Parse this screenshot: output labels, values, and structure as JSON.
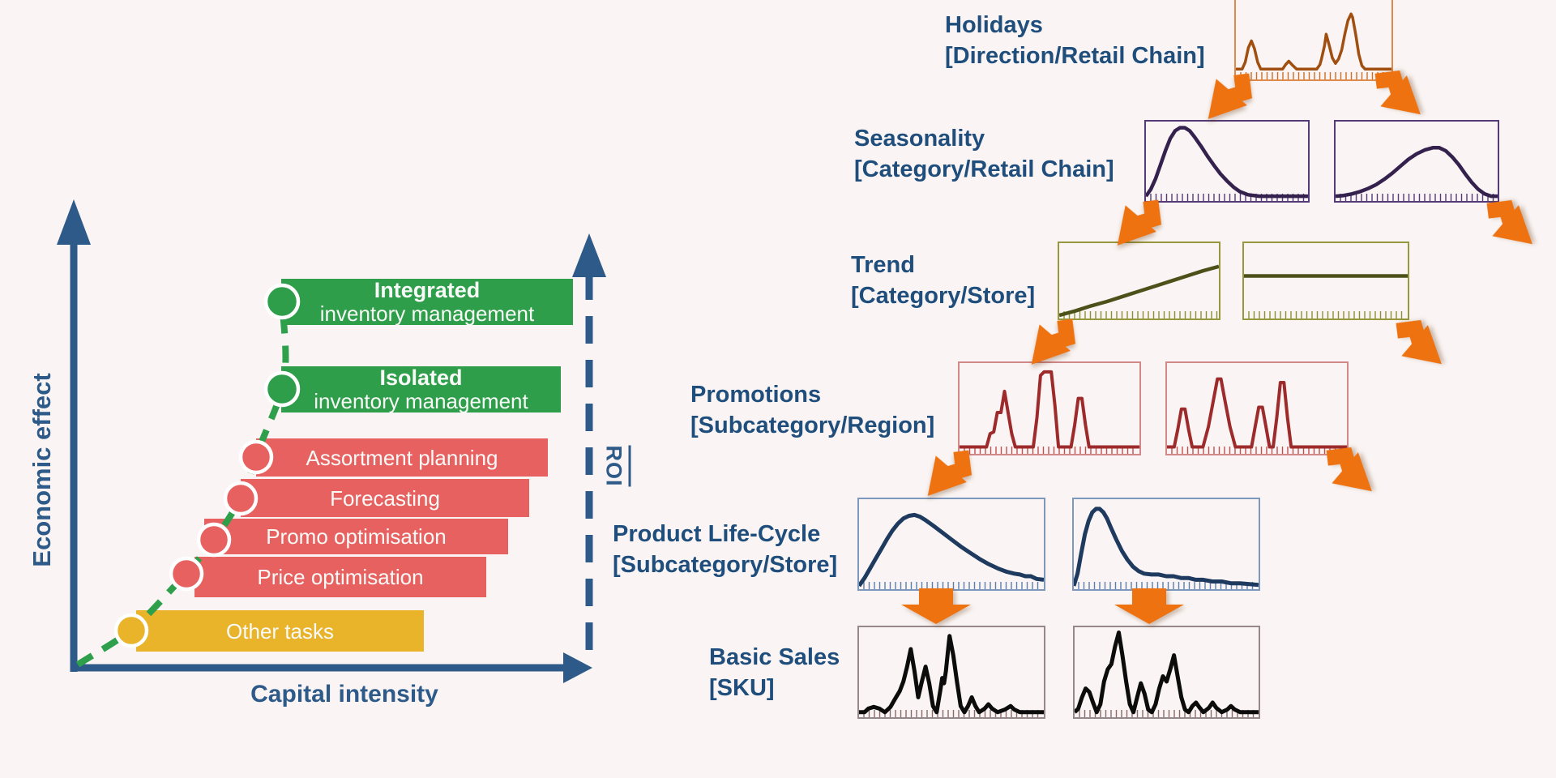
{
  "colors": {
    "background": "#faf5f4",
    "axis_blue": "#2d5a88",
    "label_blue": "#1f4e7c",
    "curve_green": "#2ea04c",
    "bar_green": "#2f9e4a",
    "bar_red": "#e86161",
    "bar_yellow": "#e9b32a",
    "arrow_orange": "#ee7210",
    "bar_text": "#f7faf7"
  },
  "left_chart": {
    "y_axis_label": "Economic effect",
    "x_axis_label": "Capital intensity",
    "roi_label": "ROI",
    "bars": [
      {
        "title": "Integrated",
        "subtitle": "inventory management",
        "color": "#2f9e4a"
      },
      {
        "title": "Isolated",
        "subtitle": "inventory management",
        "color": "#2f9e4a"
      },
      {
        "title": "Assortment planning",
        "color": "#e86161"
      },
      {
        "title": "Forecasting",
        "color": "#e86161"
      },
      {
        "title": "Promo optimisation",
        "color": "#e86161"
      },
      {
        "title": "Price optimisation",
        "color": "#e86161"
      },
      {
        "title": "Other tasks",
        "color": "#e9b32a"
      }
    ]
  },
  "hierarchy": {
    "rows": [
      {
        "title": "Holidays",
        "scope": "[Direction/Retail Chain]"
      },
      {
        "title": "Seasonality",
        "scope": "[Category/Retail Chain]"
      },
      {
        "title": "Trend",
        "scope": "[Category/Store]"
      },
      {
        "title": "Promotions",
        "scope": "[Subcategory/Region]"
      },
      {
        "title": "Product Life-Cycle",
        "scope": "[Subcategory/Store]"
      },
      {
        "title": "Basic Sales",
        "scope": "[SKU]"
      }
    ]
  },
  "sparklines": {
    "holidays": {
      "stroke": "#a14f10",
      "border": "#dd8a4a",
      "tick": "#cc6f2a",
      "width": 3.5,
      "points": [
        [
          0,
          93
        ],
        [
          4,
          93
        ],
        [
          6,
          87
        ],
        [
          8,
          74
        ],
        [
          10,
          68
        ],
        [
          12,
          75
        ],
        [
          14,
          87
        ],
        [
          16,
          93
        ],
        [
          30,
          93
        ],
        [
          32,
          89
        ],
        [
          34,
          86
        ],
        [
          36,
          89
        ],
        [
          39,
          93
        ],
        [
          52,
          93
        ],
        [
          54,
          89
        ],
        [
          55,
          84
        ],
        [
          57,
          72
        ],
        [
          58,
          62
        ],
        [
          60,
          72
        ],
        [
          62,
          83
        ],
        [
          64,
          88
        ],
        [
          66,
          84
        ],
        [
          68,
          76
        ],
        [
          70,
          62
        ],
        [
          72,
          50
        ],
        [
          74,
          44
        ],
        [
          75,
          47
        ],
        [
          77,
          62
        ],
        [
          79,
          80
        ],
        [
          81,
          90
        ],
        [
          83,
          93
        ],
        [
          100,
          93
        ]
      ]
    },
    "seas_l": {
      "stroke": "#34214d",
      "border": "#553a78",
      "tick": "#553a78",
      "width": 4.5,
      "points": [
        [
          0,
          97
        ],
        [
          3,
          88
        ],
        [
          6,
          74
        ],
        [
          9,
          56
        ],
        [
          12,
          38
        ],
        [
          15,
          22
        ],
        [
          18,
          12
        ],
        [
          21,
          8
        ],
        [
          24,
          8
        ],
        [
          27,
          12
        ],
        [
          30,
          20
        ],
        [
          34,
          32
        ],
        [
          38,
          45
        ],
        [
          42,
          57
        ],
        [
          46,
          68
        ],
        [
          50,
          77
        ],
        [
          54,
          85
        ],
        [
          58,
          91
        ],
        [
          63,
          95
        ],
        [
          70,
          97
        ],
        [
          80,
          97
        ],
        [
          100,
          97
        ]
      ]
    },
    "seas_r": {
      "stroke": "#34214d",
      "border": "#553a78",
      "tick": "#553a78",
      "width": 4.5,
      "points": [
        [
          0,
          97
        ],
        [
          5,
          96
        ],
        [
          10,
          94
        ],
        [
          15,
          91
        ],
        [
          20,
          87
        ],
        [
          25,
          82
        ],
        [
          30,
          75
        ],
        [
          35,
          67
        ],
        [
          40,
          58
        ],
        [
          45,
          49
        ],
        [
          50,
          42
        ],
        [
          55,
          37
        ],
        [
          60,
          34
        ],
        [
          64,
          34
        ],
        [
          68,
          38
        ],
        [
          72,
          46
        ],
        [
          76,
          56
        ],
        [
          80,
          68
        ],
        [
          84,
          79
        ],
        [
          88,
          88
        ],
        [
          92,
          94
        ],
        [
          96,
          97
        ],
        [
          100,
          97
        ]
      ]
    },
    "trend_l": {
      "stroke": "#4c511a",
      "border": "#97973d",
      "tick": "#8a8f35",
      "width": 4.5,
      "points": [
        [
          0,
          99
        ],
        [
          10,
          93
        ],
        [
          20,
          86
        ],
        [
          30,
          80
        ],
        [
          40,
          73
        ],
        [
          50,
          66
        ],
        [
          60,
          59
        ],
        [
          70,
          52
        ],
        [
          80,
          45
        ],
        [
          90,
          38
        ],
        [
          100,
          32
        ]
      ]
    },
    "trend_r": {
      "stroke": "#4c511a",
      "border": "#97973d",
      "tick": "#8a8f35",
      "width": 4.5,
      "points": [
        [
          0,
          45
        ],
        [
          100,
          45
        ]
      ]
    },
    "promo_l": {
      "stroke": "#9e2b2b",
      "border": "#d08888",
      "tick": "#c05050",
      "width": 4,
      "points": [
        [
          0,
          95
        ],
        [
          15,
          95
        ],
        [
          17,
          80
        ],
        [
          19,
          78
        ],
        [
          21,
          56
        ],
        [
          23,
          56
        ],
        [
          25,
          32
        ],
        [
          27,
          56
        ],
        [
          29,
          80
        ],
        [
          31,
          95
        ],
        [
          41,
          95
        ],
        [
          43,
          62
        ],
        [
          45,
          14
        ],
        [
          47,
          10
        ],
        [
          51,
          10
        ],
        [
          53,
          48
        ],
        [
          55,
          95
        ],
        [
          62,
          95
        ],
        [
          64,
          70
        ],
        [
          66,
          40
        ],
        [
          68,
          40
        ],
        [
          70,
          70
        ],
        [
          72,
          95
        ],
        [
          100,
          95
        ]
      ]
    },
    "promo_r": {
      "stroke": "#9e2b2b",
      "border": "#d08888",
      "tick": "#c05050",
      "width": 4,
      "points": [
        [
          0,
          95
        ],
        [
          4,
          95
        ],
        [
          6,
          75
        ],
        [
          8,
          52
        ],
        [
          10,
          52
        ],
        [
          12,
          75
        ],
        [
          14,
          95
        ],
        [
          20,
          95
        ],
        [
          23,
          72
        ],
        [
          26,
          40
        ],
        [
          28,
          18
        ],
        [
          30,
          18
        ],
        [
          32,
          40
        ],
        [
          35,
          72
        ],
        [
          38,
          95
        ],
        [
          47,
          95
        ],
        [
          49,
          72
        ],
        [
          51,
          50
        ],
        [
          53,
          50
        ],
        [
          55,
          72
        ],
        [
          57,
          95
        ],
        [
          59,
          95
        ],
        [
          61,
          62
        ],
        [
          63,
          22
        ],
        [
          65,
          22
        ],
        [
          67,
          62
        ],
        [
          69,
          95
        ],
        [
          100,
          95
        ]
      ]
    },
    "plc_l": {
      "stroke": "#1e3a5f",
      "border": "#7c98bc",
      "tick": "#5b7fae",
      "width": 5,
      "points": [
        [
          0,
          99
        ],
        [
          3,
          90
        ],
        [
          6,
          79
        ],
        [
          9,
          68
        ],
        [
          12,
          57
        ],
        [
          15,
          46
        ],
        [
          18,
          36
        ],
        [
          21,
          28
        ],
        [
          24,
          22
        ],
        [
          27,
          19
        ],
        [
          30,
          18
        ],
        [
          33,
          20
        ],
        [
          36,
          24
        ],
        [
          40,
          30
        ],
        [
          45,
          38
        ],
        [
          50,
          46
        ],
        [
          55,
          54
        ],
        [
          60,
          61
        ],
        [
          65,
          68
        ],
        [
          70,
          74
        ],
        [
          75,
          79
        ],
        [
          80,
          83
        ],
        [
          84,
          85
        ],
        [
          87,
          86
        ],
        [
          90,
          88
        ],
        [
          93,
          88
        ],
        [
          96,
          91
        ],
        [
          100,
          92
        ]
      ]
    },
    "plc_r": {
      "stroke": "#1e3a5f",
      "border": "#7c98bc",
      "tick": "#5b7fae",
      "width": 5,
      "points": [
        [
          0,
          99
        ],
        [
          2,
          85
        ],
        [
          4,
          62
        ],
        [
          6,
          40
        ],
        [
          8,
          25
        ],
        [
          10,
          15
        ],
        [
          12,
          11
        ],
        [
          14,
          11
        ],
        [
          16,
          15
        ],
        [
          18,
          22
        ],
        [
          20,
          32
        ],
        [
          23,
          46
        ],
        [
          26,
          59
        ],
        [
          29,
          69
        ],
        [
          32,
          77
        ],
        [
          35,
          82
        ],
        [
          38,
          85
        ],
        [
          42,
          86
        ],
        [
          46,
          86
        ],
        [
          50,
          88
        ],
        [
          54,
          88
        ],
        [
          58,
          90
        ],
        [
          62,
          90
        ],
        [
          66,
          92
        ],
        [
          70,
          92
        ],
        [
          75,
          94
        ],
        [
          80,
          94
        ],
        [
          85,
          96
        ],
        [
          90,
          96
        ],
        [
          95,
          97
        ],
        [
          100,
          98
        ]
      ]
    },
    "basic_l": {
      "stroke": "#0c0c0c",
      "border": "#96888a",
      "tick": "#8a6a6a",
      "width": 5,
      "points": [
        [
          0,
          97
        ],
        [
          3,
          97
        ],
        [
          5,
          93
        ],
        [
          8,
          91
        ],
        [
          11,
          93
        ],
        [
          14,
          97
        ],
        [
          17,
          91
        ],
        [
          20,
          80
        ],
        [
          22,
          73
        ],
        [
          24,
          62
        ],
        [
          26,
          45
        ],
        [
          28,
          25
        ],
        [
          30,
          50
        ],
        [
          32,
          80
        ],
        [
          34,
          62
        ],
        [
          36,
          45
        ],
        [
          38,
          64
        ],
        [
          40,
          90
        ],
        [
          42,
          97
        ],
        [
          44,
          72
        ],
        [
          45,
          58
        ],
        [
          46,
          64
        ],
        [
          47,
          50
        ],
        [
          48,
          30
        ],
        [
          49,
          10
        ],
        [
          51,
          32
        ],
        [
          53,
          62
        ],
        [
          55,
          90
        ],
        [
          57,
          97
        ],
        [
          59,
          90
        ],
        [
          61,
          80
        ],
        [
          63,
          90
        ],
        [
          65,
          97
        ],
        [
          68,
          93
        ],
        [
          70,
          88
        ],
        [
          72,
          93
        ],
        [
          75,
          97
        ],
        [
          79,
          94
        ],
        [
          82,
          90
        ],
        [
          84,
          94
        ],
        [
          87,
          97
        ],
        [
          100,
          97
        ]
      ]
    },
    "basic_r": {
      "stroke": "#0c0c0c",
      "border": "#96888a",
      "tick": "#8a6a6a",
      "width": 5,
      "points": [
        [
          0,
          97
        ],
        [
          2,
          93
        ],
        [
          4,
          80
        ],
        [
          6,
          70
        ],
        [
          8,
          74
        ],
        [
          10,
          86
        ],
        [
          12,
          97
        ],
        [
          14,
          88
        ],
        [
          16,
          62
        ],
        [
          18,
          48
        ],
        [
          20,
          42
        ],
        [
          22,
          22
        ],
        [
          24,
          6
        ],
        [
          26,
          32
        ],
        [
          28,
          62
        ],
        [
          30,
          88
        ],
        [
          32,
          97
        ],
        [
          34,
          80
        ],
        [
          36,
          64
        ],
        [
          38,
          76
        ],
        [
          40,
          94
        ],
        [
          42,
          97
        ],
        [
          44,
          88
        ],
        [
          46,
          70
        ],
        [
          48,
          56
        ],
        [
          50,
          62
        ],
        [
          52,
          48
        ],
        [
          54,
          32
        ],
        [
          56,
          56
        ],
        [
          58,
          80
        ],
        [
          60,
          94
        ],
        [
          62,
          97
        ],
        [
          64,
          90
        ],
        [
          66,
          86
        ],
        [
          68,
          92
        ],
        [
          70,
          97
        ],
        [
          73,
          92
        ],
        [
          75,
          86
        ],
        [
          77,
          92
        ],
        [
          80,
          97
        ],
        [
          83,
          94
        ],
        [
          85,
          90
        ],
        [
          87,
          94
        ],
        [
          90,
          97
        ],
        [
          100,
          97
        ]
      ]
    }
  }
}
